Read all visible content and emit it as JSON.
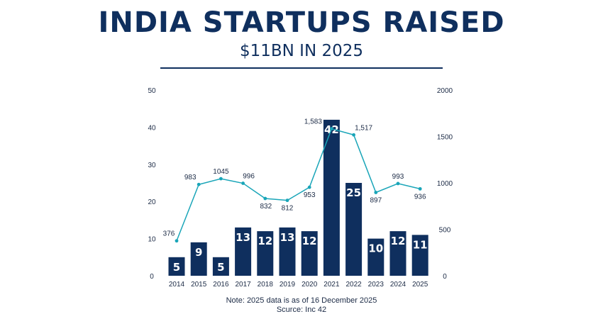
{
  "title": "INDIA STARTUPS RAISED",
  "subtitle": "$11BN IN 2025",
  "note": "Note: 2025 data is as of 16 December 2025",
  "source": "Scurce: Inc 42",
  "colors": {
    "bar": "#0f2f5e",
    "line": "#19a5b8",
    "text": "#0f2f5e"
  },
  "chart_data": {
    "type": "bar",
    "categories": [
      "2014",
      "2015",
      "2016",
      "2017",
      "2018",
      "2019",
      "2020",
      "2021",
      "2022",
      "2023",
      "2024",
      "2025"
    ],
    "series": [
      {
        "name": "",
        "type": "bar",
        "axis": "left",
        "values": [
          5,
          9,
          5,
          13,
          12,
          13,
          12,
          42,
          25,
          10,
          12,
          11
        ]
      },
      {
        "name": "",
        "type": "line",
        "axis": "right",
        "values": [
          376,
          983,
          1045,
          996,
          832,
          812,
          953,
          1583,
          1517,
          897,
          993,
          936
        ],
        "labels": [
          "376",
          "983",
          "1045",
          "996",
          "832",
          "812",
          "953",
          "1,583",
          "1,517",
          "897",
          "993",
          "936"
        ]
      }
    ],
    "y_left": {
      "ylim": [
        0,
        50
      ],
      "ticks": [
        "0",
        "10",
        "20",
        "30",
        "40",
        "50"
      ]
    },
    "y_right": {
      "ylim": [
        0,
        2000
      ],
      "ticks": [
        "0",
        "500",
        "1000",
        "1500",
        "2000"
      ]
    },
    "grid": false
  }
}
